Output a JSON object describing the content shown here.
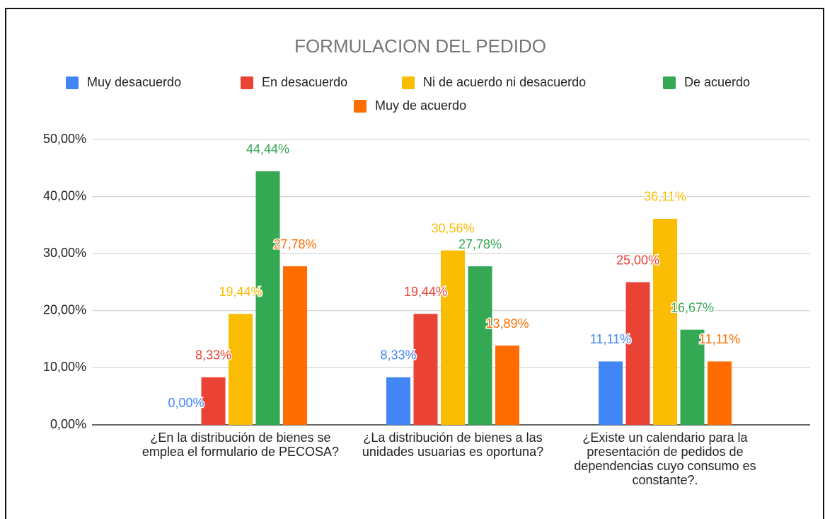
{
  "chart_data": {
    "type": "bar",
    "title": "FORMULACION DEL PEDIDO",
    "categories": [
      "¿En la distribución de bienes se emplea el formulario de PECOSA?",
      "¿La distribución de bienes a las unidades usuarias es oportuna?",
      "¿Existe un calendario para la presentación de pedidos de dependencias cuyo consumo es constante?."
    ],
    "series": [
      {
        "name": "Muy desacuerdo",
        "color": "#4285f4",
        "values": [
          0,
          8.33,
          11.11
        ],
        "value_labels": [
          "0,00%",
          "8,33%",
          "11,11%"
        ]
      },
      {
        "name": "En desacuerdo",
        "color": "#ea4335",
        "values": [
          8.33,
          19.44,
          25
        ],
        "value_labels": [
          "8,33%",
          "19,44%",
          "25,00%"
        ]
      },
      {
        "name": "Ni de acuerdo ni desacuerdo",
        "color": "#fbbc04",
        "values": [
          19.44,
          30.56,
          36.11
        ],
        "value_labels": [
          "19,44%",
          "30,56%",
          "36,11%"
        ]
      },
      {
        "name": "De acuerdo",
        "color": "#34a853",
        "values": [
          44.44,
          27.78,
          16.67
        ],
        "value_labels": [
          "44,44%",
          "27,78%",
          "16,67%"
        ]
      },
      {
        "name": "Muy de acuerdo",
        "color": "#ff6d01",
        "values": [
          27.78,
          13.89,
          11.11
        ],
        "value_labels": [
          "27,78%",
          "13,89%",
          "11,11%"
        ]
      }
    ],
    "ylim": [
      0,
      50
    ],
    "yticks": [
      {
        "value": 0,
        "label": "0,00%"
      },
      {
        "value": 10,
        "label": "10,00%"
      },
      {
        "value": 20,
        "label": "20,00%"
      },
      {
        "value": 30,
        "label": "30,00%"
      },
      {
        "value": 40,
        "label": "40,00%"
      },
      {
        "value": 50,
        "label": "50,00%"
      }
    ],
    "grid": true,
    "legend": "top"
  }
}
